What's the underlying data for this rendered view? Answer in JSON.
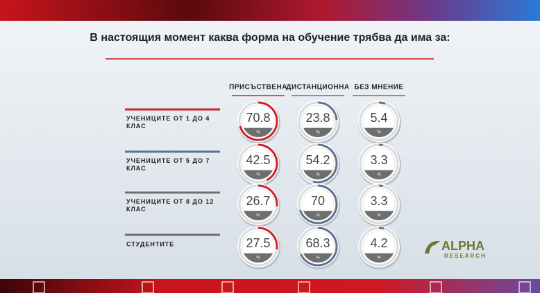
{
  "chart_data": {
    "type": "gauge",
    "title": "В настоящия момент каква форма на обучение трябва да има за:",
    "categories": [
      "УЧЕНИЦИТЕ ОТ 1 ДО 4 КЛАС",
      "УЧЕНИЦИТЕ ОТ 5 ДО 7 КЛАС",
      "УЧЕНИЦИТЕ ОТ 8 ДО 12 КЛАС",
      "СТУДЕНТИТЕ"
    ],
    "row_colors": [
      "#d0202a",
      "#5d7390",
      "#6e6e6e",
      "#6e6e6e"
    ],
    "series": [
      {
        "name": "ПРИСЪСТВЕНА",
        "color": "#d0202a",
        "values": [
          70.8,
          42.5,
          26.7,
          27.5
        ]
      },
      {
        "name": "ДИСТАНЦИОННА",
        "color": "#5d7390",
        "values": [
          23.8,
          54.2,
          70,
          68.3
        ]
      },
      {
        "name": "БЕЗ МНЕНИЕ",
        "color": "#6e6e6e",
        "values": [
          5.4,
          3.3,
          3.3,
          4.2
        ]
      }
    ],
    "ylim": [
      0,
      100
    ],
    "unit_label": "%",
    "logo": {
      "name": "ALPHA",
      "subtitle": "RESEARCH"
    }
  }
}
